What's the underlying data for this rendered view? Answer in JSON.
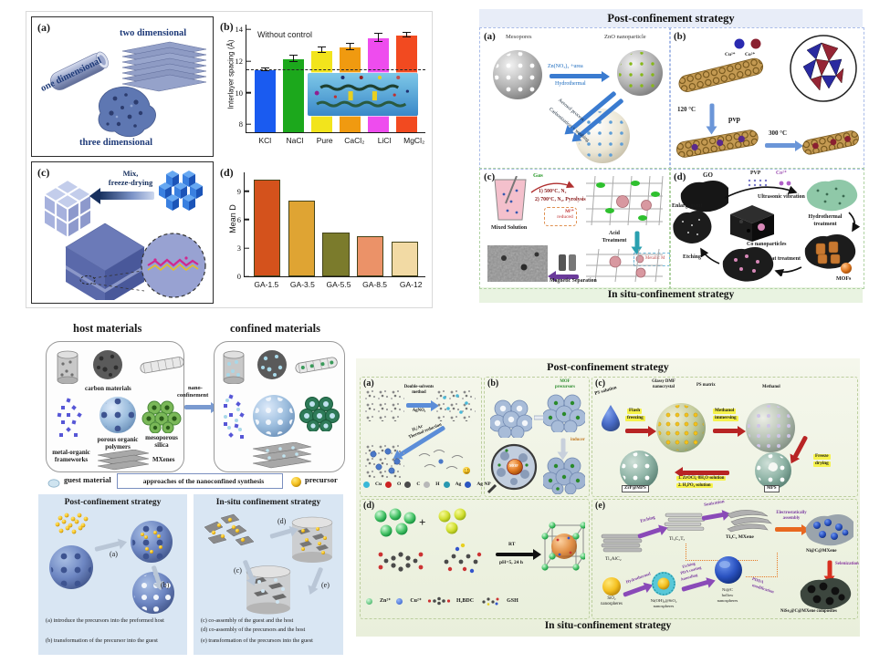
{
  "figure1": {
    "panel_a": {
      "label": "(a)",
      "one_dimensional": "one dimensional",
      "two_dimensional": "two dimensional",
      "three_dimensional": "three dimensional"
    },
    "panel_b": {
      "label": "(b)"
    },
    "panel_c": {
      "label": "(c)",
      "arrow_line1": "Mix,",
      "arrow_line2": "freeze-drying"
    },
    "panel_d": {
      "label": "(d)"
    }
  },
  "figure2": {
    "header": "Post-confinement strategy",
    "footer": "In situ-confinement strategy",
    "panel_a": {
      "label": "(a)",
      "mesopores": "Mesopores",
      "zno": "ZnO nanoparticle",
      "arrow1_line1": "Zn(NO₃)₂ +urea",
      "arrow1_line2": "Hydrothermal",
      "diag_line1": "Aerosol process",
      "diag_line2": "Carbonization + washing"
    },
    "panel_b": {
      "label": "(b)",
      "ion1": "Cu²⁺",
      "ion2": "Co²⁺",
      "temp1": "120 °C",
      "pvp": "pvp",
      "temp2": "300 °C"
    },
    "panel_c": {
      "label": "(c)",
      "mixed": "Mixed Solution",
      "gas": "Gas",
      "step1": "1) 500°C, N₂",
      "step2": "2) 700°C, N₂, Pyrolysis",
      "reduced_line1": "M²⁺",
      "reduced_line2": "reduced",
      "acid_line1": "Acid",
      "acid_line2": "Treatment",
      "metallic": "Metallic M",
      "magnetic": "Magnetic Separation"
    },
    "panel_d": {
      "label": "(d)",
      "go": "GO",
      "pvp": "PVP",
      "co_ion": "Co²⁺",
      "ultrasonic": "Ultrasonic vibration",
      "hydro_line1": "Hydrothermal",
      "hydro_line2": "treatment",
      "enlargement": "Enlargement",
      "co_nano": "Co nanoparticles",
      "etching": "Etching",
      "heat": "Heat treatment",
      "mofs": "MOFs"
    }
  },
  "figure3": {
    "host_title": "host materials",
    "confined_title": "confined materials",
    "arrow_line1": "nano-",
    "arrow_line2": "confinement",
    "carbon": "carbon materials",
    "polymers_line1": "porous organic",
    "polymers_line2": "polymers",
    "silica_line1": "mesoporous",
    "silica_line2": "silica",
    "mof_line1": "metal-organic",
    "mof_line2": "frameworks",
    "mxenes": "MXenes",
    "guest": "guest material",
    "approaches": "approaches of the nanoconfined synthesis",
    "precursor": "precursor",
    "guest_color": "#cfe4f0",
    "precursor_color": "#f2b818",
    "post": {
      "title": "Post-confinement strategy",
      "tag_a": "(a)",
      "tag_b": "(b)",
      "cap_a": "(a)  introduce the precursors into the preformed host",
      "cap_b": "(b)  transformation of the precursor into the guest"
    },
    "insitu": {
      "title": "In-situ confinement strategy",
      "tag_c": "(c)",
      "tag_d": "(d)",
      "tag_e": "(e)",
      "cap_c": "(c) co-assembly of the guest and the host",
      "cap_d": "(d) co-assembly of the precursors and the host",
      "cap_e": "(e) transformation of the precursors into the guest"
    }
  },
  "figure4": {
    "header": "Post-confinement strategy",
    "footer": "In situ-confinement strategy",
    "panel_a": {
      "label": "(a)",
      "method_line1": "Double-solvents",
      "method_line2": "method",
      "method_line3": "AgNO₃",
      "red_line1": "H₂/Ar",
      "red_line2": "Thermal reduction",
      "legend": [
        {
          "label": "Cu",
          "color": "#38b8d8"
        },
        {
          "label": "O",
          "color": "#cc2222"
        },
        {
          "label": "C",
          "color": "#4a4a4a"
        },
        {
          "label": "H",
          "color": "#b8b8b8"
        },
        {
          "label": "Ag",
          "color": "#2898b0"
        },
        {
          "label": "Ag NP",
          "color": "#2a55c0"
        }
      ]
    },
    "panel_b": {
      "label": "(b)",
      "precursors_line1": "MOF",
      "precursors_line2": "precursors",
      "inducer": "inducer",
      "mof": "MOF"
    },
    "panel_c": {
      "label": "(c)",
      "ps": "PS solution",
      "flash_line1": "Flash",
      "flash_line2": "freezing",
      "glassy_line1": "Glassy DMF",
      "glassy_line2": "nanocrystal",
      "matrix": "PS matrix",
      "imm_line1": "Methanol",
      "imm_line2": "immersing",
      "methanol": "Methanol",
      "freeze_line1": "Freeze",
      "freeze_line2": "drying",
      "mps": "MPS",
      "sol1": "1. ZrOCl₂·8H₂O solution",
      "sol2": "2. H₃PO₄ solution",
      "zrp": "ZrP@MPS"
    },
    "panel_d": {
      "label": "(d)",
      "plus": "+",
      "rt": "RT",
      "ph": "pH=5, 24 h",
      "zn": "Zn²⁺",
      "cu": "Cu²⁺",
      "bdc": "H₂BDC",
      "gsh": "GSH"
    },
    "panel_e": {
      "label": "(e)",
      "etching": "Etching",
      "tialc": "Ti₃AlC₂",
      "tict": "Ti₃C₂Tₓ",
      "sonication": "Sonication",
      "mxene": "Ti₃C₂ MXene",
      "electro_line1": "Electrostatically",
      "electro_line2": "assembly",
      "nicmx": "Ni@C@MXene",
      "selen": "Selenization",
      "nise": "NiSe₂@C@MXene composites",
      "sio2_line1": "SiO₂",
      "sio2_line2": "nanospheres",
      "hydrothermal": "Hydrothermal",
      "nioh_line1": "Ni(OH)₂@SiO₂",
      "nioh_line2": "nanospheres",
      "pda1": "Etching",
      "pda2": "PDA coating",
      "pda3": "Annealing",
      "nic_line1": "Ni@C",
      "nic_line2": "hollow",
      "nic_line3": "nanospheres",
      "pdda_line1": "PDDA",
      "pdda_line2": "modification"
    }
  },
  "chart_data": [
    {
      "type": "bar",
      "panel": "(b)",
      "annotation": "Without control",
      "categories": [
        "KCl",
        "NaCl",
        "Pure",
        "CaCl₂",
        "LiCl",
        "MgCl₂"
      ],
      "values": [
        11.4,
        12.1,
        12.65,
        12.85,
        13.45,
        13.6
      ],
      "errors": [
        0.06,
        0.18,
        0.15,
        0.18,
        0.22,
        0.12
      ],
      "colors": [
        "#1a5bf0",
        "#1ca81c",
        "#f2e41c",
        "#f09a10",
        "#ee4cee",
        "#f24a20"
      ],
      "ylabel": "Interlayer spacing (Å)",
      "ylim": [
        7.5,
        14.3
      ],
      "yticks": [
        8,
        10,
        12,
        14
      ],
      "dashed_line": 11.4,
      "grid": false,
      "legend_position": "none"
    },
    {
      "type": "bar",
      "panel": "(d)",
      "categories": [
        "GA-1.5",
        "GA-3.5",
        "GA-5.5",
        "GA-8.5",
        "GA-12"
      ],
      "values": [
        10.0,
        7.8,
        4.4,
        4.1,
        3.5
      ],
      "colors": [
        "#d4521c",
        "#dfa433",
        "#7b7b2c",
        "#eb9268",
        "#f2daa4"
      ],
      "bar_border": "#44441a",
      "ylabel": "Mean D",
      "ylim": [
        0,
        11
      ],
      "yticks": [
        0,
        3,
        6,
        9
      ],
      "grid": false
    }
  ]
}
